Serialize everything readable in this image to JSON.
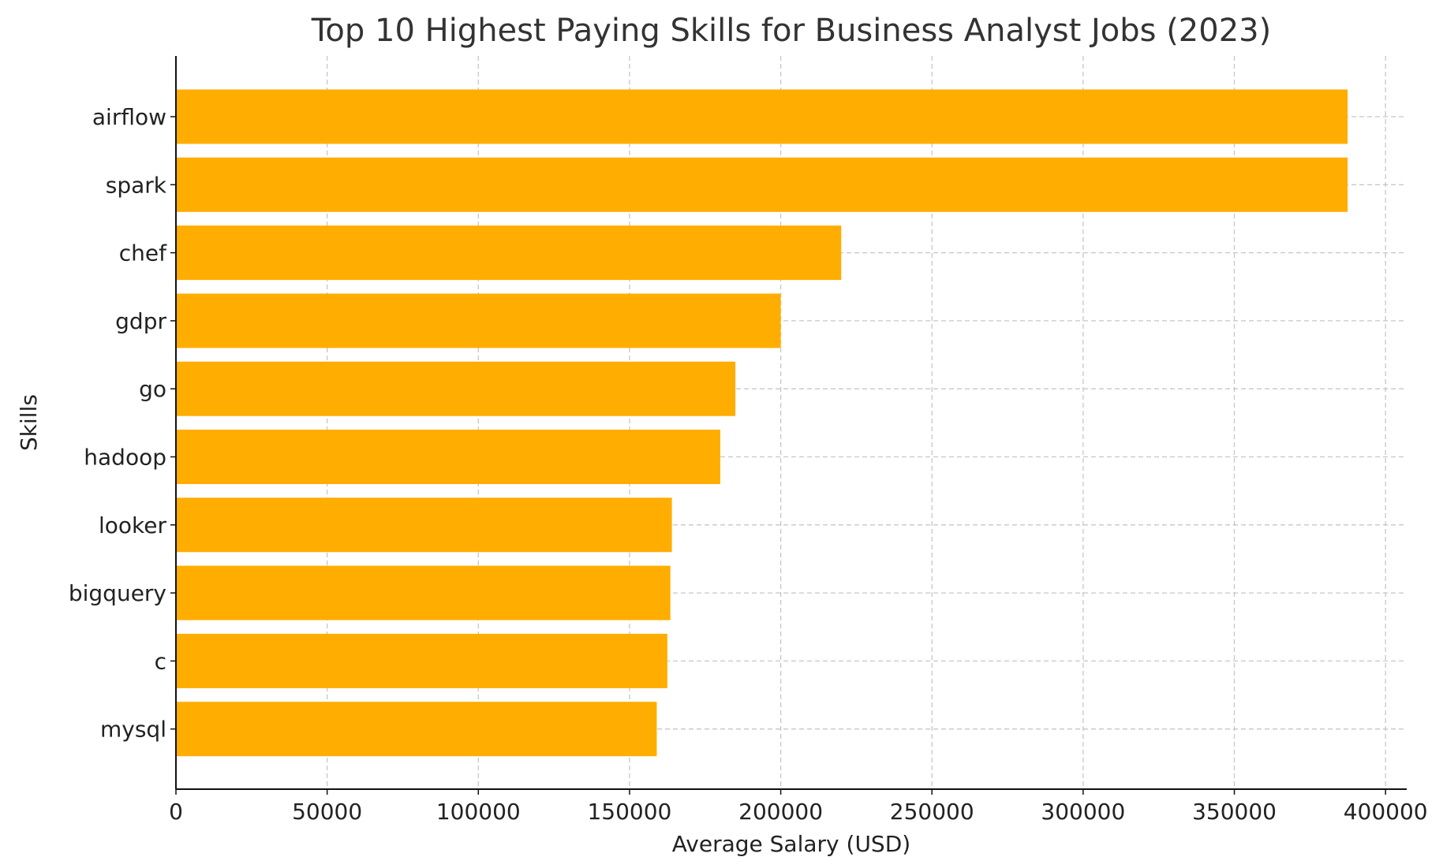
{
  "chart_data": {
    "type": "bar",
    "orientation": "horizontal",
    "title": "Top 10 Highest Paying Skills for Business Analyst Jobs (2023)",
    "xlabel": "Average Salary (USD)",
    "ylabel": "Skills",
    "categories": [
      "airflow",
      "spark",
      "chef",
      "gdpr",
      "go",
      "hadoop",
      "looker",
      "bigquery",
      "c",
      "mysql"
    ],
    "values": [
      387460,
      387460,
      220000,
      200000,
      185000,
      180000,
      164000,
      163500,
      162500,
      159000
    ],
    "xlim": [
      0,
      407000
    ],
    "xticks": [
      0,
      50000,
      100000,
      150000,
      200000,
      250000,
      300000,
      350000,
      400000
    ],
    "xtick_labels": [
      "0",
      "50000",
      "100000",
      "150000",
      "200000",
      "250000",
      "300000",
      "350000",
      "400000"
    ],
    "grid": true,
    "bar_color": "#ffad00"
  }
}
